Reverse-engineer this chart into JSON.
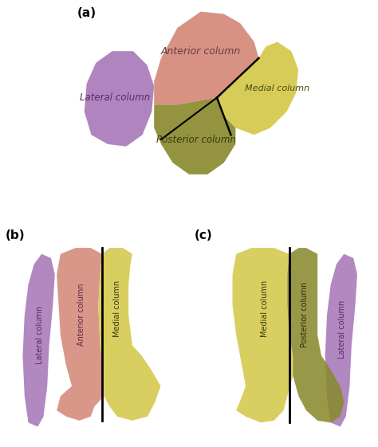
{
  "bg_color": "#ffffff",
  "panel_a_label": "(a)",
  "panel_b_label": "(b)",
  "panel_c_label": "(c)",
  "anterior_color": "#d4897a",
  "medial_color": "#d4c84a",
  "posterior_color": "#8a8a30",
  "lateral_color": "#a878b8",
  "bone_yellow": "#e8d898",
  "text_color_dark": "#2a2a10",
  "text_color_purple": "#4a2a5a",
  "label_fontsize": 9,
  "panel_label_fontsize": 11
}
